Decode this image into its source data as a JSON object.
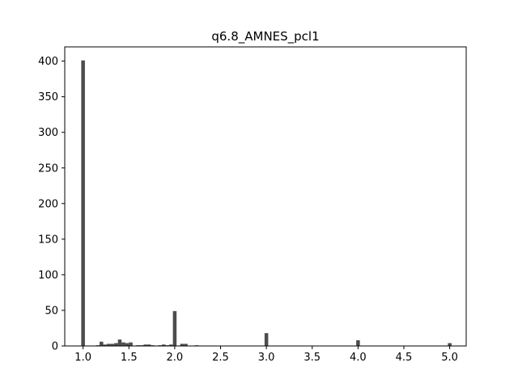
{
  "chart_data": {
    "type": "bar",
    "title": "q6.8_AMNES_pcl1",
    "xlabel": "",
    "ylabel": "",
    "xlim": [
      0.8,
      5.18
    ],
    "ylim": [
      0,
      420
    ],
    "xticks": [
      1.0,
      1.5,
      2.0,
      2.5,
      3.0,
      3.5,
      4.0,
      4.5,
      5.0
    ],
    "xtick_labels": [
      "1.0",
      "1.5",
      "2.0",
      "2.5",
      "3.0",
      "3.5",
      "4.0",
      "4.5",
      "5.0"
    ],
    "yticks": [
      0,
      50,
      100,
      150,
      200,
      250,
      300,
      350,
      400
    ],
    "ytick_labels": [
      "0",
      "50",
      "100",
      "150",
      "200",
      "250",
      "300",
      "350",
      "400"
    ],
    "bar_width": 0.04,
    "bar_color": "#4d4d4d",
    "grid": false,
    "x": [
      1.0,
      1.16,
      1.2,
      1.24,
      1.28,
      1.32,
      1.36,
      1.4,
      1.44,
      1.48,
      1.52,
      1.6,
      1.64,
      1.68,
      1.72,
      1.76,
      1.84,
      1.88,
      1.92,
      1.96,
      2.0,
      2.08,
      2.12,
      2.24,
      3.0,
      4.0,
      5.0
    ],
    "values": [
      401,
      1,
      6,
      2,
      3,
      3,
      4,
      9,
      5,
      4,
      5,
      1,
      1,
      2,
      2,
      1,
      1,
      2,
      1,
      2,
      49,
      3,
      3,
      1,
      18,
      8,
      4
    ]
  }
}
